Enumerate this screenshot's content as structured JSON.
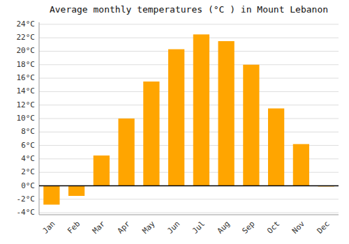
{
  "chart_data": {
    "type": "bar",
    "title": "Average monthly temperatures (°C ) in Mount Lebanon",
    "categories": [
      "Jan",
      "Feb",
      "Mar",
      "Apr",
      "May",
      "Jun",
      "Jul",
      "Aug",
      "Sep",
      "Oct",
      "Nov",
      "Dec"
    ],
    "values": [
      -2.8,
      -1.5,
      4.5,
      10.0,
      15.5,
      20.3,
      22.5,
      21.5,
      18.0,
      11.5,
      6.2,
      -0.1
    ],
    "color": "#FFA500",
    "ylim": [
      -4.3,
      24.3
    ],
    "yticks": [
      {
        "value": -4,
        "label": "-4°C"
      },
      {
        "value": -2,
        "label": "-2°C"
      },
      {
        "value": 0,
        "label": "0°C"
      },
      {
        "value": 2,
        "label": "2°C"
      },
      {
        "value": 4,
        "label": "4°C"
      },
      {
        "value": 6,
        "label": "6°C"
      },
      {
        "value": 8,
        "label": "8°C"
      },
      {
        "value": 10,
        "label": "10°C"
      },
      {
        "value": 12,
        "label": "12°C"
      },
      {
        "value": 14,
        "label": "14°C"
      },
      {
        "value": 16,
        "label": "16°C"
      },
      {
        "value": 18,
        "label": "18°C"
      },
      {
        "value": 20,
        "label": "20°C"
      },
      {
        "value": 22,
        "label": "22°C"
      },
      {
        "value": 24,
        "label": "24°C"
      }
    ],
    "grid": true
  }
}
